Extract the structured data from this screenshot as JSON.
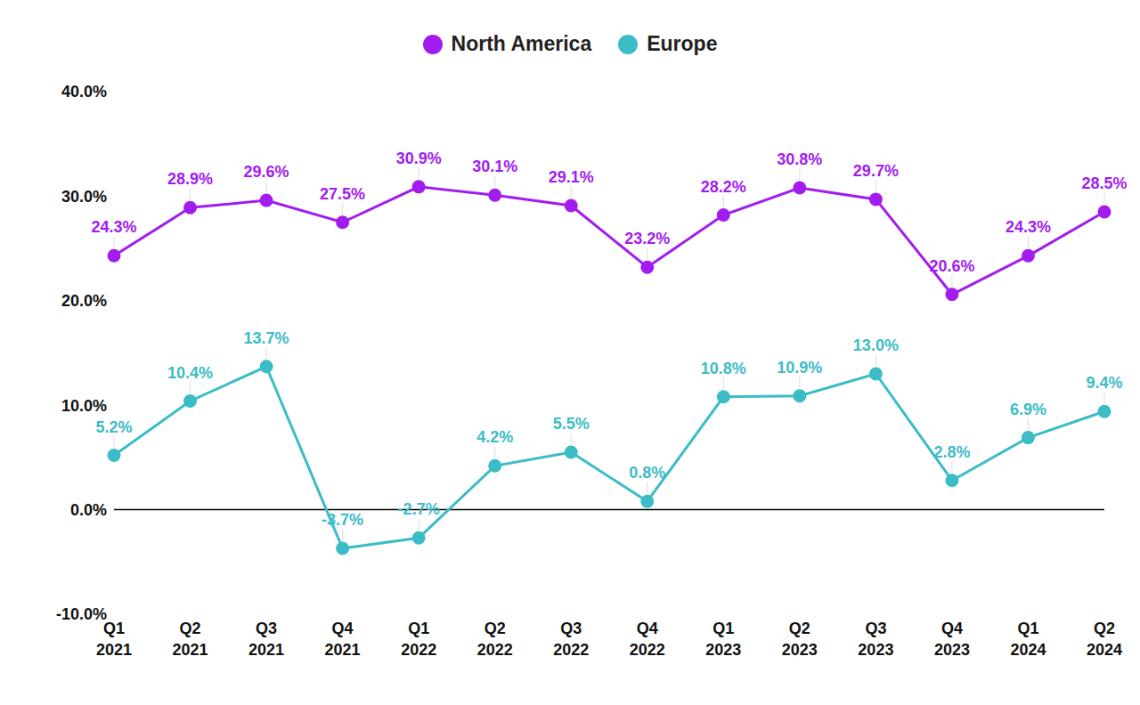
{
  "chart_data": {
    "type": "line",
    "legend": "top",
    "grid": false,
    "data_labels": true,
    "categories": [
      "Q1 2021",
      "Q2 2021",
      "Q3 2021",
      "Q4 2021",
      "Q1 2022",
      "Q2 2022",
      "Q3 2022",
      "Q4 2022",
      "Q1 2023",
      "Q2 2023",
      "Q3 2023",
      "Q4 2023",
      "Q1 2024",
      "Q2 2024"
    ],
    "ylim": [
      -10,
      40
    ],
    "yticks": [
      {
        "value": -10,
        "label": "-10.0%"
      },
      {
        "value": 0,
        "label": "0.0%"
      },
      {
        "value": 10,
        "label": "10.0%"
      },
      {
        "value": 20,
        "label": "20.0%"
      },
      {
        "value": 30,
        "label": "30.0%"
      },
      {
        "value": 40,
        "label": "40.0%"
      }
    ],
    "series": [
      {
        "name": "North America",
        "color": "#a21cf0",
        "marker": "circle",
        "values": [
          24.3,
          28.9,
          29.6,
          27.5,
          30.9,
          30.1,
          29.1,
          23.2,
          28.2,
          30.8,
          29.7,
          20.6,
          24.3,
          28.5
        ],
        "value_labels": [
          "24.3%",
          "28.9%",
          "29.6%",
          "27.5%",
          "30.9%",
          "30.1%",
          "29.1%",
          "23.2%",
          "28.2%",
          "30.8%",
          "29.7%",
          "20.6%",
          "24.3%",
          "28.5%"
        ]
      },
      {
        "name": "Europe",
        "color": "#3bbcc6",
        "marker": "circle",
        "values": [
          5.2,
          10.4,
          13.7,
          -3.7,
          -2.7,
          4.2,
          5.5,
          0.8,
          10.8,
          10.9,
          13.0,
          2.8,
          6.9,
          9.4
        ],
        "value_labels": [
          "5.2%",
          "10.4%",
          "13.7%",
          "-3.7%",
          "-2.7%",
          "4.2%",
          "5.5%",
          "0.8%",
          "10.8%",
          "10.9%",
          "13.0%",
          "2.8%",
          "6.9%",
          "9.4%"
        ]
      }
    ]
  }
}
